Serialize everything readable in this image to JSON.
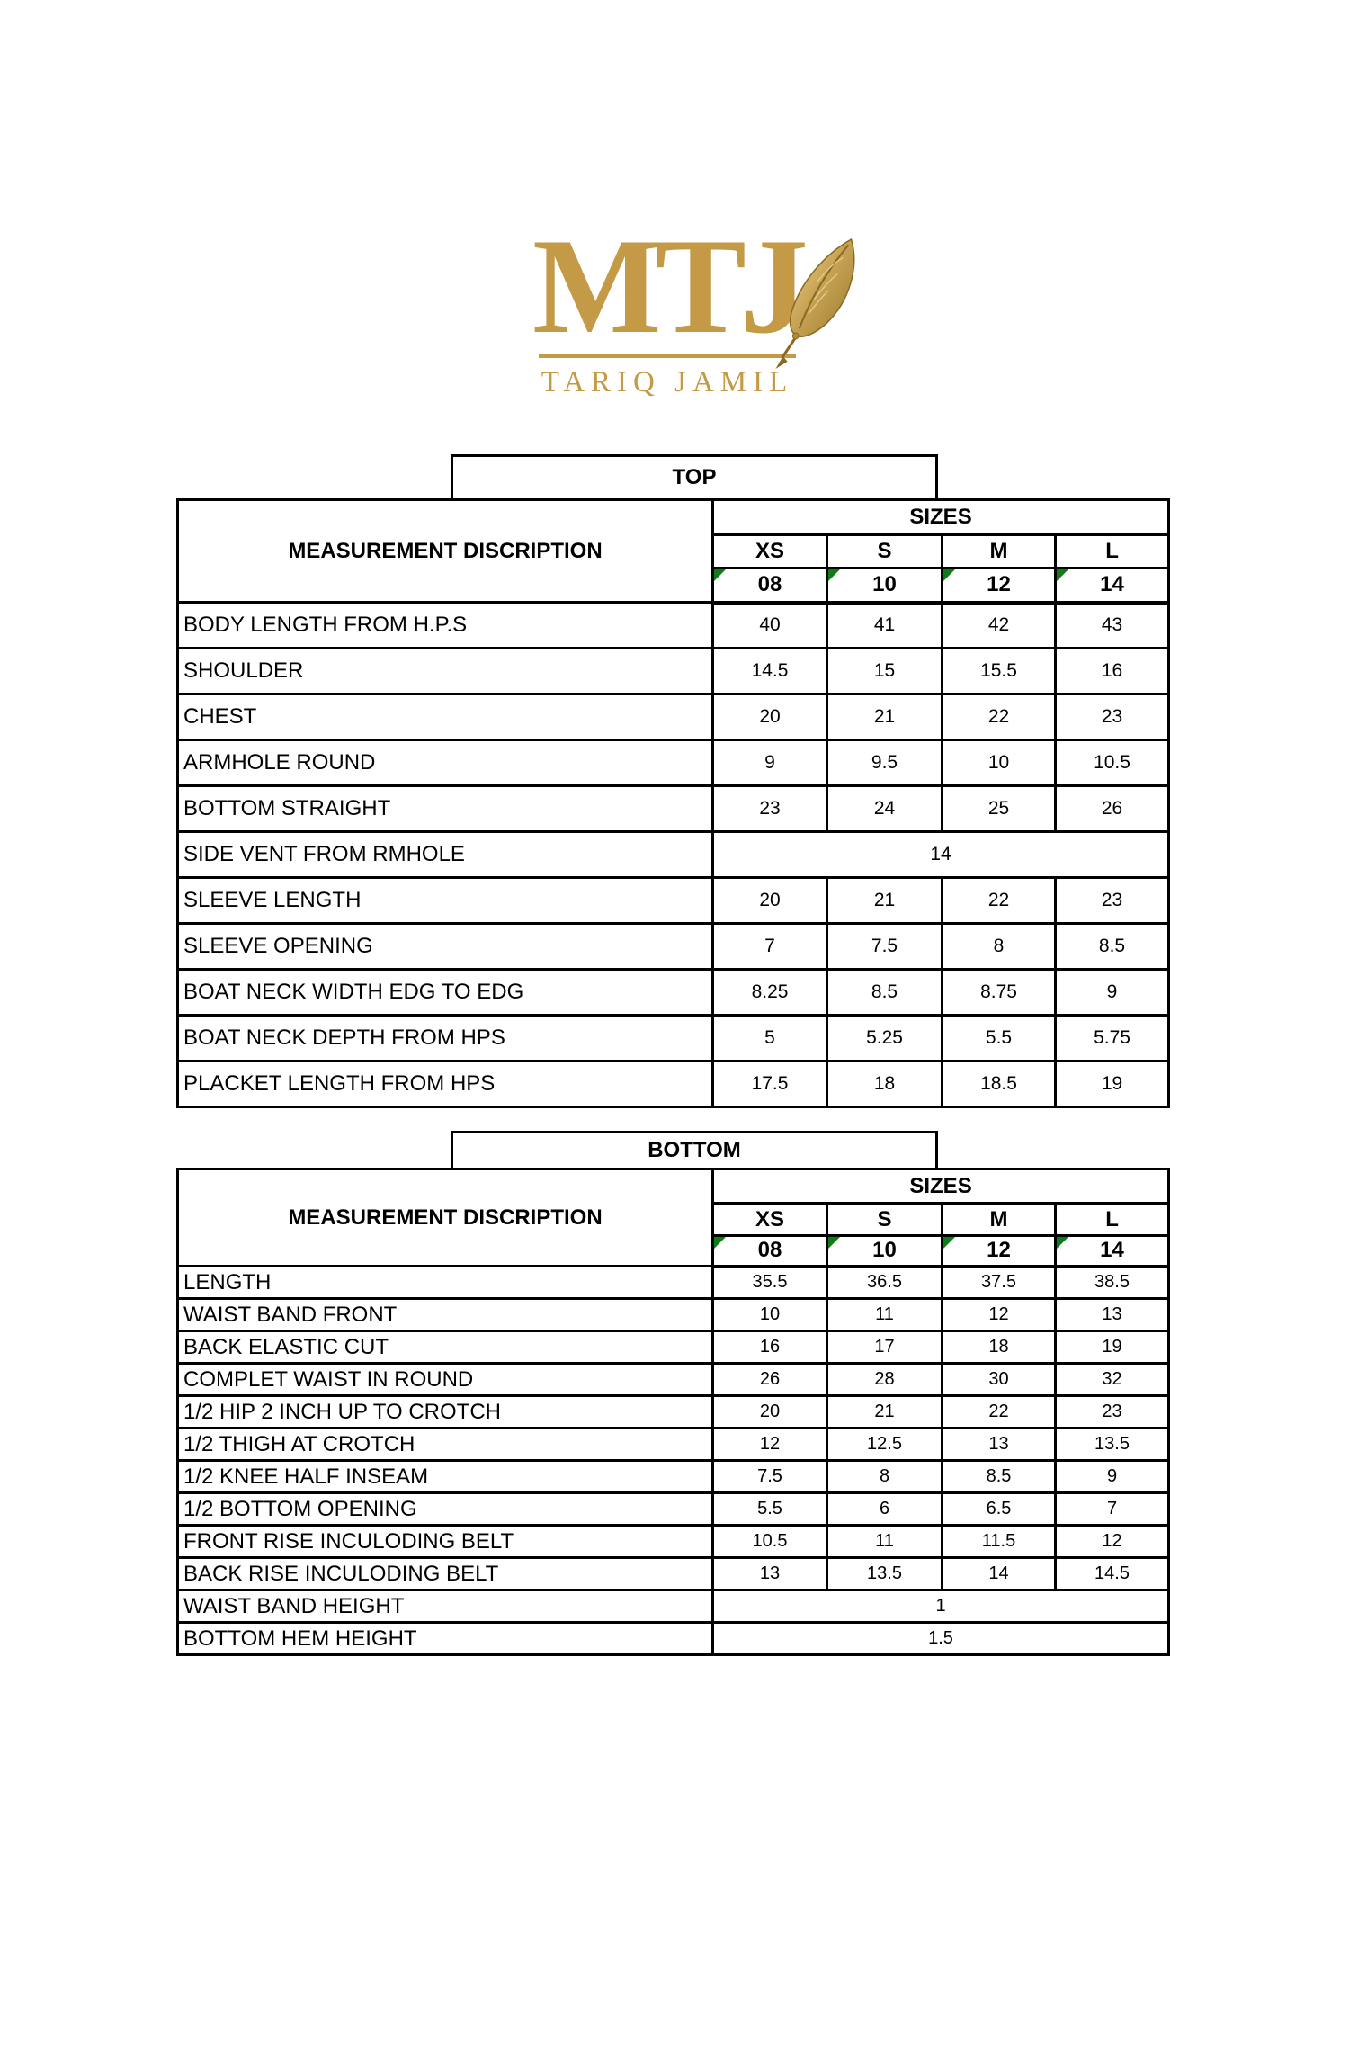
{
  "logo": {
    "brand": "MTJ",
    "subtitle": "TARIQ JAMIL",
    "gold": "#c49a47",
    "feather_icon": "quill-feather-icon"
  },
  "colors": {
    "grid": "#000000",
    "corner_triangle_green": "#0f7c15",
    "text": "#000000",
    "background": "#ffffff"
  },
  "tables": [
    {
      "section_label": "TOP",
      "desc_header": "MEASUREMENT DISCRIPTION",
      "sizes_header": "SIZES",
      "size_labels": [
        "XS",
        "S",
        "M",
        "L"
      ],
      "size_numbers": [
        "08",
        "10",
        "12",
        "14"
      ],
      "rows": [
        {
          "label": "BODY LENGTH FROM H.P.S",
          "values": [
            "40",
            "41",
            "42",
            "43"
          ]
        },
        {
          "label": "SHOULDER",
          "values": [
            "14.5",
            "15",
            "15.5",
            "16"
          ]
        },
        {
          "label": "CHEST",
          "values": [
            "20",
            "21",
            "22",
            "23"
          ]
        },
        {
          "label": "ARMHOLE ROUND",
          "values": [
            "9",
            "9.5",
            "10",
            "10.5"
          ]
        },
        {
          "label": "BOTTOM STRAIGHT",
          "values": [
            "23",
            "24",
            "25",
            "26"
          ]
        },
        {
          "label": "SIDE VENT FROM RMHOLE",
          "merged": "14"
        },
        {
          "label": "SLEEVE LENGTH",
          "values": [
            "20",
            "21",
            "22",
            "23"
          ]
        },
        {
          "label": "SLEEVE OPENING",
          "values": [
            "7",
            "7.5",
            "8",
            "8.5"
          ]
        },
        {
          "label": "BOAT NECK WIDTH EDG TO EDG",
          "values": [
            "8.25",
            "8.5",
            "8.75",
            "9"
          ]
        },
        {
          "label": "BOAT NECK DEPTH FROM HPS",
          "values": [
            "5",
            "5.25",
            "5.5",
            "5.75"
          ]
        },
        {
          "label": "PLACKET LENGTH FROM HPS",
          "values": [
            "17.5",
            "18",
            "18.5",
            "19"
          ]
        }
      ]
    },
    {
      "section_label": "BOTTOM",
      "desc_header": "MEASUREMENT DISCRIPTION",
      "sizes_header": "SIZES",
      "size_labels": [
        "XS",
        "S",
        "M",
        "L"
      ],
      "size_numbers": [
        "08",
        "10",
        "12",
        "14"
      ],
      "rows": [
        {
          "label": "LENGTH",
          "values": [
            "35.5",
            "36.5",
            "37.5",
            "38.5"
          ]
        },
        {
          "label": "WAIST BAND FRONT",
          "values": [
            "10",
            "11",
            "12",
            "13"
          ]
        },
        {
          "label": "BACK ELASTIC CUT",
          "values": [
            "16",
            "17",
            "18",
            "19"
          ]
        },
        {
          "label": "COMPLET WAIST IN ROUND",
          "values": [
            "26",
            "28",
            "30",
            "32"
          ]
        },
        {
          "label": "1/2 HIP 2 INCH UP TO CROTCH",
          "values": [
            "20",
            "21",
            "22",
            "23"
          ]
        },
        {
          "label": "1/2 THIGH AT CROTCH",
          "values": [
            "12",
            "12.5",
            "13",
            "13.5"
          ]
        },
        {
          "label": "1/2 KNEE HALF INSEAM",
          "values": [
            "7.5",
            "8",
            "8.5",
            "9"
          ]
        },
        {
          "label": "1/2 BOTTOM  OPENING",
          "values": [
            "5.5",
            "6",
            "6.5",
            "7"
          ]
        },
        {
          "label": "FRONT RISE  INCULODING BELT",
          "values": [
            "10.5",
            "11",
            "11.5",
            "12"
          ]
        },
        {
          "label": "BACK RISE INCULODING BELT",
          "values": [
            "13",
            "13.5",
            "14",
            "14.5"
          ]
        },
        {
          "label": "WAIST BAND HEIGHT",
          "merged": "1"
        },
        {
          "label": "BOTTOM HEM HEIGHT",
          "merged": "1.5"
        }
      ]
    }
  ]
}
